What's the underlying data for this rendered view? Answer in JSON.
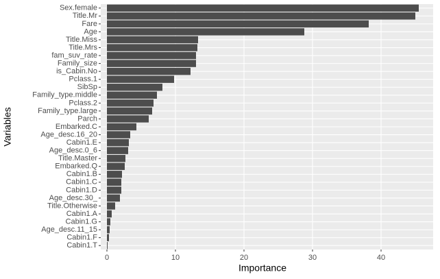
{
  "chart_data": {
    "type": "barh",
    "xlabel": "Importance",
    "ylabel": "Variables",
    "categories": [
      "Sex.female",
      "Title.Mr",
      "Fare",
      "Age",
      "Title.Miss",
      "Title.Mrs",
      "fam_suv_rate",
      "Family_size",
      "is_Cabin.No",
      "Pclass.1",
      "SibSp",
      "Family_type.middle",
      "Pclass.2",
      "Family_type.large",
      "Parch",
      "Embarked.C",
      "Age_desc.16_20",
      "Cabin1.E",
      "Age_desc.0_6",
      "Title.Master",
      "Embarked.Q",
      "Cabin1.B",
      "Cabin1.C",
      "Cabin1.D",
      "Age_desc.30_",
      "Title.Otherwise",
      "Cabin1.A",
      "Cabin1.G",
      "Age_desc.11_15",
      "Cabin1.F",
      "Cabin1.T"
    ],
    "values": [
      45.5,
      45.0,
      38.2,
      28.8,
      13.3,
      13.2,
      13.0,
      13.0,
      12.2,
      9.8,
      8.1,
      7.3,
      6.8,
      6.6,
      6.1,
      4.3,
      3.4,
      3.2,
      3.1,
      2.7,
      2.6,
      2.2,
      2.1,
      2.1,
      1.9,
      1.2,
      0.7,
      0.5,
      0.4,
      0.3,
      0.1
    ],
    "color": "#4d4d4d",
    "panel_color": "#ebebeb",
    "grid": true,
    "xlim": [
      -0.9,
      47.6
    ],
    "xticks": [
      0,
      10,
      20,
      30,
      40
    ]
  }
}
